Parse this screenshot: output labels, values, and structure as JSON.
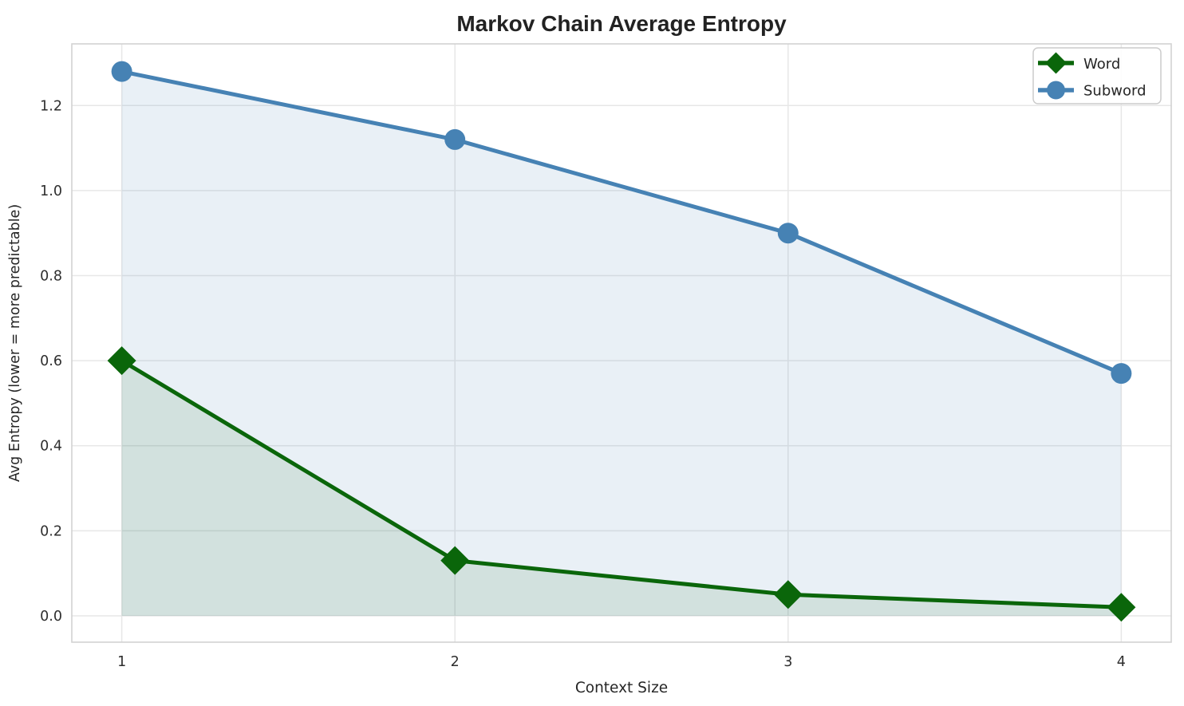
{
  "chart_data": {
    "type": "line",
    "title": "Markov Chain Average Entropy",
    "xlabel": "Context Size",
    "ylabel": "Avg Entropy (lower = more predictable)",
    "x": [
      1,
      2,
      3,
      4
    ],
    "series": [
      {
        "name": "Word",
        "values": [
          0.6,
          0.13,
          0.05,
          0.02
        ],
        "color": "#0a660a",
        "marker": "diamond",
        "fill_alpha": 0.1
      },
      {
        "name": "Subword",
        "values": [
          1.28,
          1.12,
          0.9,
          0.57
        ],
        "color": "#4682b4",
        "marker": "circle",
        "fill_alpha": 0.12
      }
    ],
    "xticks": [
      1,
      2,
      3,
      4
    ],
    "xtick_labels": [
      "1",
      "2",
      "3",
      "4"
    ],
    "yticks": [
      0.0,
      0.2,
      0.4,
      0.6,
      0.8,
      1.0,
      1.2
    ],
    "ytick_labels": [
      "0.0",
      "0.2",
      "0.4",
      "0.6",
      "0.8",
      "1.0",
      "1.2"
    ],
    "xlim": [
      0.85,
      4.15
    ],
    "ylim": [
      -0.062,
      1.345
    ],
    "grid": true,
    "area_fill_baseline": 0,
    "legend_position": "upper right",
    "grid_color": "#e7e7e7",
    "spine_color": "#d2d2d2"
  }
}
